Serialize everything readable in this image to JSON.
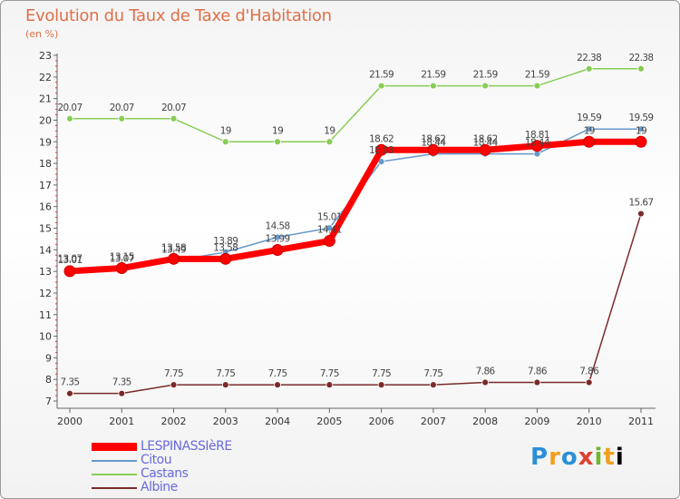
{
  "header": {
    "title": "Evolution du Taux de Taxe d'Habitation",
    "subtitle": "(en %)"
  },
  "logo": {
    "letters": [
      "P",
      "r",
      "o",
      "x",
      "i",
      "t",
      "i"
    ],
    "text": "Proxiti"
  },
  "chart_data": {
    "type": "line",
    "title": "Evolution du Taux de Taxe d'Habitation",
    "ylabel": "(en %)",
    "xlabel": "",
    "ylim": [
      7,
      23
    ],
    "yticks": [
      7,
      8,
      9,
      10,
      11,
      12,
      13,
      14,
      15,
      16,
      17,
      18,
      19,
      20,
      21,
      22,
      23
    ],
    "categories": [
      "2000",
      "2001",
      "2002",
      "2003",
      "2004",
      "2005",
      "2006",
      "2007",
      "2008",
      "2009",
      "2010",
      "2011"
    ],
    "grid": false,
    "legend_position": "bottom-left",
    "series": [
      {
        "name": "LESPINASSIèRE",
        "color": "#ff0000",
        "values": [
          13.01,
          13.15,
          13.58,
          13.58,
          13.99,
          14.41,
          18.62,
          18.62,
          18.62,
          18.81,
          19.0,
          19.0
        ],
        "labels": [
          "13.01",
          "13.15",
          "13.58",
          "13.58",
          "13.99",
          "14.41",
          "18.62",
          "18.62",
          "18.62",
          "18.81",
          "19",
          "19"
        ]
      },
      {
        "name": "Citou",
        "color": "#6699cc",
        "values": [
          13.07,
          13.07,
          13.49,
          13.89,
          14.58,
          15.01,
          18.08,
          18.44,
          18.44,
          18.44,
          19.59,
          19.59
        ],
        "labels": [
          "13.07",
          "13.07",
          "13.49",
          "13.89",
          "14.58",
          "15.01",
          "18.08",
          "18.44",
          "18.44",
          "18.44",
          "19.59",
          "19.59"
        ]
      },
      {
        "name": "Castans",
        "color": "#88cc55",
        "values": [
          20.07,
          20.07,
          20.07,
          19,
          19,
          19,
          21.59,
          21.59,
          21.59,
          21.59,
          22.38,
          22.38
        ],
        "labels": [
          "20.07",
          "20.07",
          "20.07",
          "19",
          "19",
          "19",
          "21.59",
          "21.59",
          "21.59",
          "21.59",
          "22.38",
          "22.38"
        ]
      },
      {
        "name": "Albine",
        "color": "#7a2a2a",
        "values": [
          7.35,
          7.35,
          7.75,
          7.75,
          7.75,
          7.75,
          7.75,
          7.75,
          7.86,
          7.86,
          7.86,
          15.67
        ],
        "labels": [
          "7.35",
          "7.35",
          "7.75",
          "7.75",
          "7.75",
          "7.75",
          "7.75",
          "7.75",
          "7.86",
          "7.86",
          "7.86",
          "15.67"
        ]
      }
    ]
  }
}
